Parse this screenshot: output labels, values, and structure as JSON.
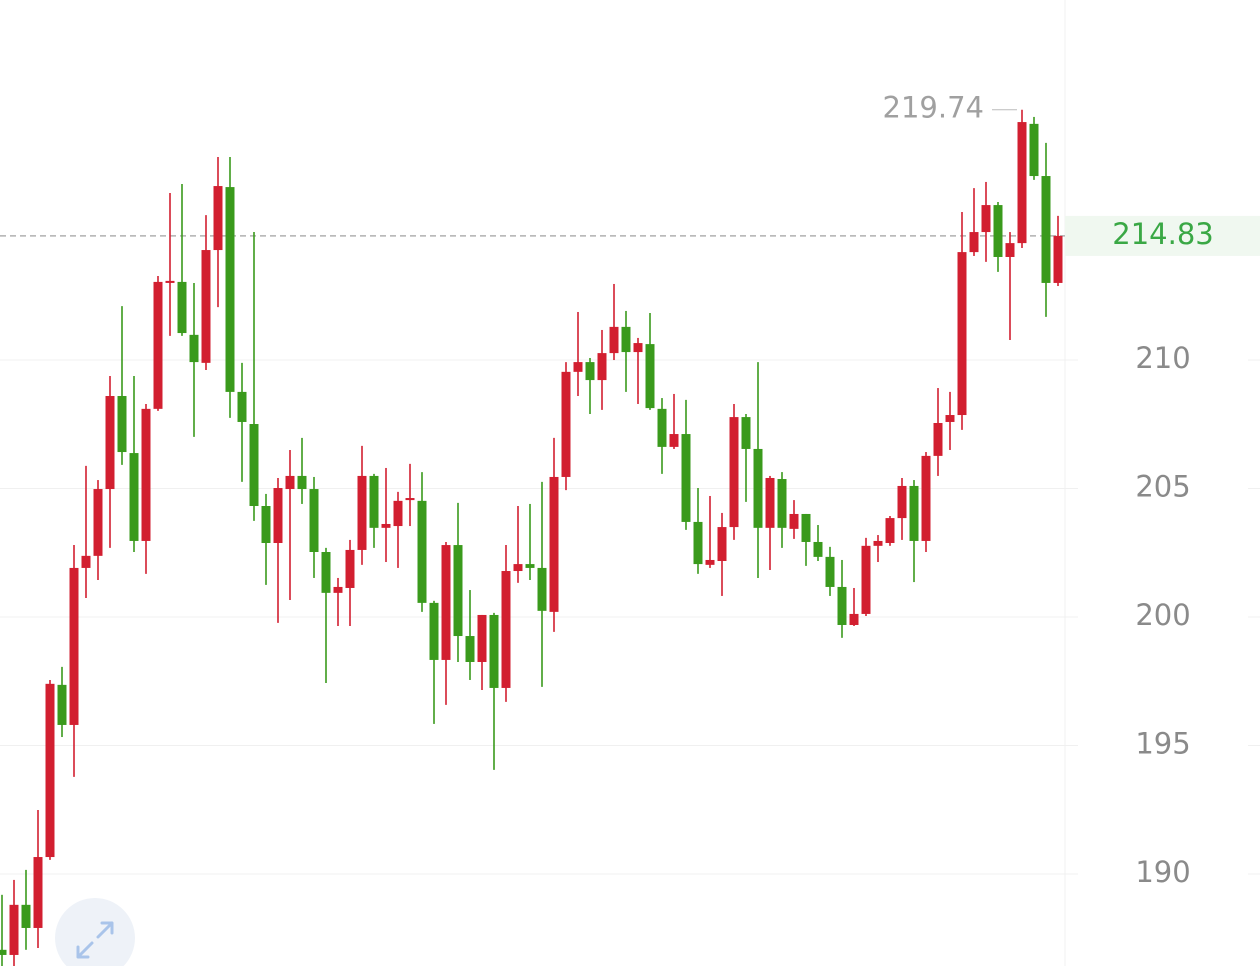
{
  "chart_data": {
    "type": "candlestick",
    "open": [
      187.05,
      186.85,
      188.8,
      187.9,
      190.66,
      197.36,
      195.8,
      201.91,
      202.38,
      204.98,
      208.6,
      206.38,
      202.96,
      208.1,
      213.0,
      213.04,
      210.98,
      209.89,
      214.28,
      216.73,
      208.76,
      207.51,
      204.32,
      202.88,
      204.98,
      205.49,
      204.98,
      202.53,
      200.94,
      201.13,
      202.61,
      205.49,
      203.47,
      203.54,
      204.55,
      204.52,
      200.55,
      198.33,
      202.8,
      199.26,
      198.25,
      200.08,
      197.24,
      201.79,
      202.06,
      201.91,
      200.2,
      205.45,
      209.54,
      209.92,
      209.22,
      210.27,
      211.29,
      210.31,
      210.62,
      208.1,
      206.62,
      207.12,
      203.7,
      202.03,
      202.18,
      203.5,
      207.78,
      206.54,
      203.47,
      205.37,
      203.43,
      204.01,
      202.92,
      202.34,
      201.17,
      199.69,
      200.12,
      202.77,
      202.88,
      203.85,
      205.1,
      202.96,
      206.27,
      207.59,
      207.86,
      214.2,
      214.98,
      216.03,
      214.01,
      214.55,
      219.19,
      217.16,
      213.0
    ],
    "high": [
      189.19,
      189.77,
      190.16,
      192.49,
      197.55,
      198.06,
      202.8,
      205.88,
      205.33,
      209.38,
      212.1,
      209.38,
      208.29,
      213.27,
      216.5,
      216.85,
      213.0,
      215.64,
      217.9,
      217.9,
      209.89,
      214.98,
      204.79,
      205.41,
      206.5,
      206.97,
      205.45,
      202.69,
      201.52,
      203.0,
      206.66,
      205.57,
      205.8,
      204.87,
      205.96,
      205.64,
      200.63,
      202.92,
      204.44,
      201.05,
      200.08,
      200.16,
      202.8,
      204.32,
      204.4,
      205.26,
      206.97,
      209.92,
      211.87,
      210.08,
      211.17,
      212.96,
      211.91,
      210.86,
      211.83,
      208.52,
      208.68,
      208.45,
      205.02,
      204.71,
      204.05,
      208.29,
      207.9,
      209.92,
      205.49,
      205.64,
      204.55,
      204.01,
      203.58,
      202.73,
      202.22,
      201.13,
      203.08,
      203.19,
      203.93,
      205.41,
      205.33,
      206.42,
      208.91,
      208.76,
      215.76,
      216.69,
      216.93,
      216.15,
      214.98,
      219.74,
      219.46,
      218.45,
      215.61
    ],
    "low": [
      186.42,
      186.42,
      187.05,
      187.12,
      190.55,
      195.33,
      193.78,
      200.74,
      201.44,
      202.69,
      205.92,
      202.53,
      201.68,
      208.02,
      210.94,
      210.94,
      207.01,
      209.61,
      212.06,
      207.75,
      205.26,
      203.74,
      201.25,
      199.77,
      200.66,
      204.4,
      201.52,
      197.43,
      199.65,
      199.65,
      202.03,
      202.69,
      202.14,
      201.91,
      203.54,
      200.2,
      195.84,
      196.58,
      198.25,
      197.55,
      197.16,
      194.05,
      196.7,
      201.33,
      201.44,
      197.28,
      199.42,
      204.94,
      208.6,
      207.9,
      208.06,
      210.0,
      208.76,
      208.29,
      208.06,
      205.57,
      206.54,
      203.39,
      201.68,
      201.91,
      200.82,
      203.0,
      204.48,
      201.52,
      201.83,
      202.69,
      203.04,
      201.99,
      202.18,
      200.82,
      199.19,
      199.65,
      200.04,
      202.14,
      202.77,
      203.0,
      201.36,
      202.53,
      205.49,
      206.5,
      207.28,
      214.05,
      213.82,
      213.43,
      210.78,
      214.36,
      217.01,
      211.68,
      212.88
    ],
    "close": [
      186.85,
      188.8,
      187.9,
      190.66,
      197.4,
      195.8,
      201.91,
      202.38,
      204.98,
      208.6,
      206.42,
      202.96,
      208.1,
      213.04,
      213.08,
      211.05,
      209.92,
      214.28,
      216.77,
      208.76,
      207.59,
      204.32,
      202.88,
      205.02,
      205.49,
      204.98,
      202.53,
      200.94,
      201.17,
      202.61,
      205.49,
      203.47,
      203.62,
      204.52,
      204.63,
      200.55,
      198.33,
      202.8,
      199.26,
      198.25,
      200.08,
      197.24,
      201.79,
      202.06,
      201.91,
      200.24,
      205.45,
      209.54,
      209.92,
      209.22,
      210.27,
      211.29,
      210.31,
      210.66,
      208.13,
      206.62,
      207.12,
      203.7,
      202.06,
      202.22,
      203.5,
      207.78,
      206.54,
      203.47,
      205.41,
      203.47,
      204.01,
      202.92,
      202.34,
      201.17,
      199.69,
      200.12,
      202.77,
      202.96,
      203.85,
      205.1,
      202.96,
      206.27,
      207.55,
      207.86,
      214.2,
      214.98,
      216.03,
      214.01,
      214.55,
      219.26,
      217.16,
      213.0,
      214.83
    ],
    "ylim": [
      186.42,
      224.01
    ],
    "yticks": [
      190,
      195,
      200,
      205,
      210
    ],
    "grid": true,
    "up_color": "#d21f30",
    "down_color": "#3a9a1c",
    "last_price_color": "#3aa845"
  }
}
